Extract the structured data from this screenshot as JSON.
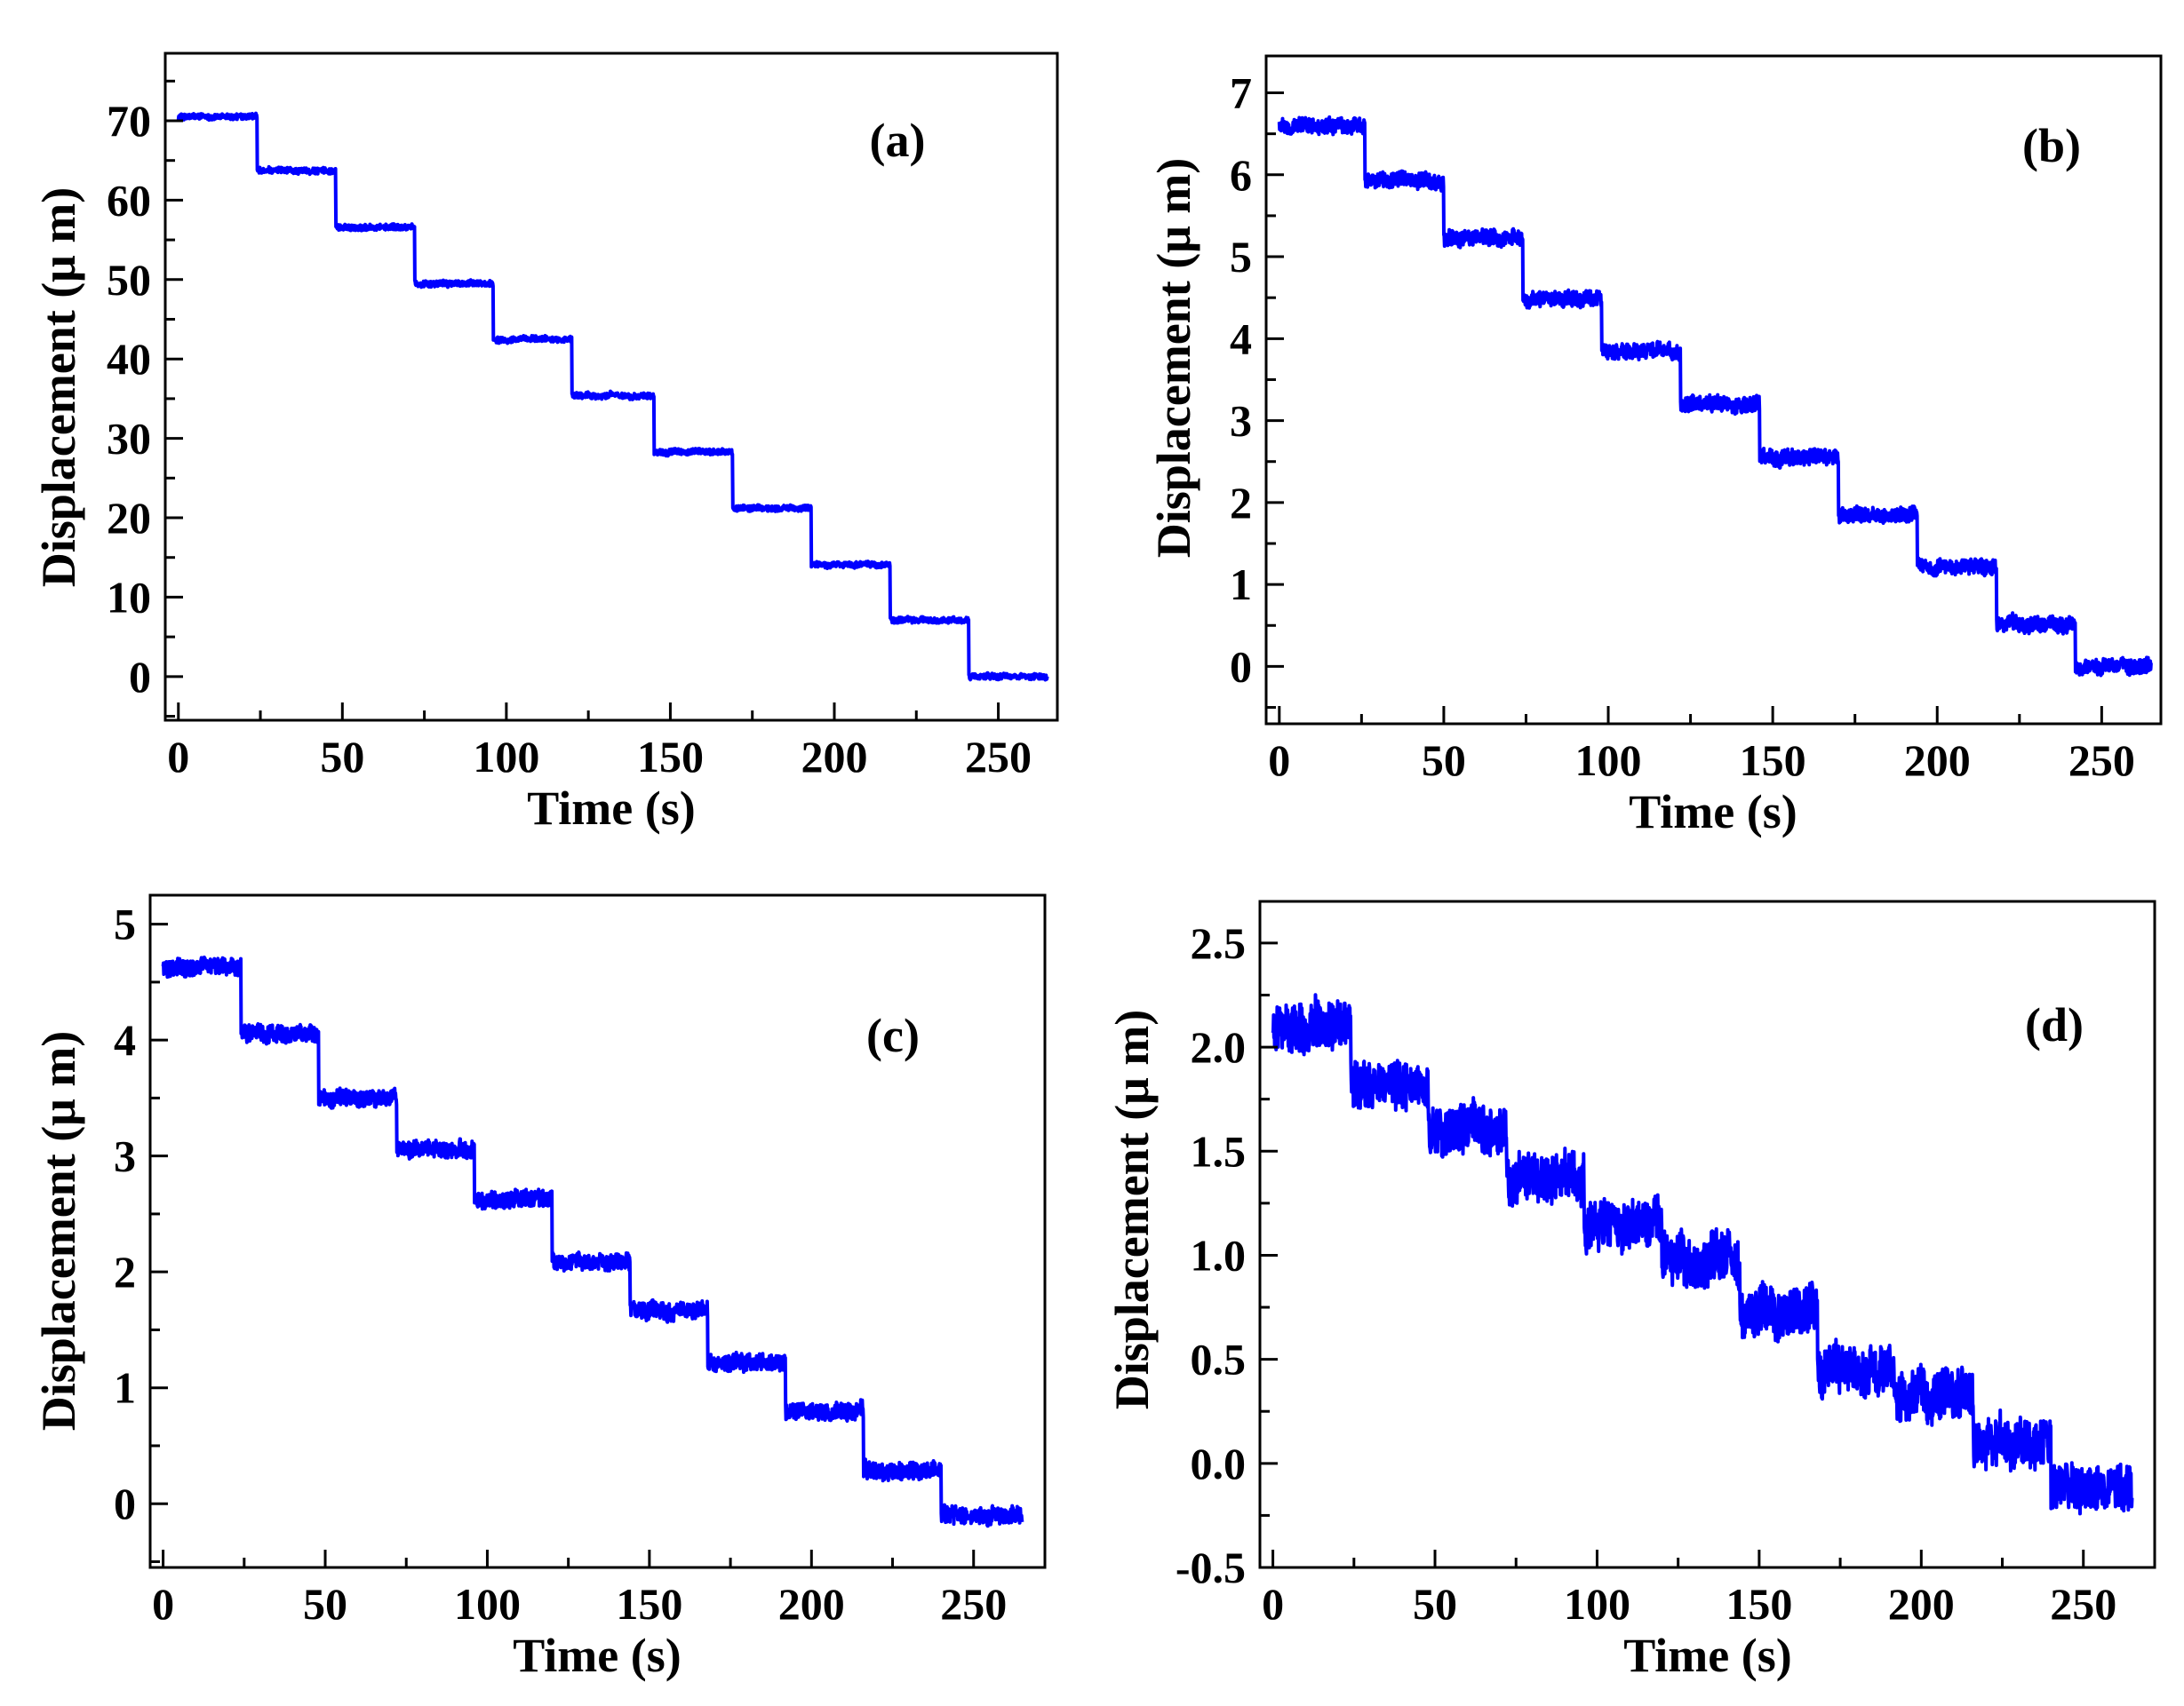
{
  "figure": {
    "line_color": "#0000FF"
  },
  "chart_data": [
    {
      "type": "line",
      "panel_label": "(a)",
      "xlabel": "Time (s)",
      "ylabel": "Displacement (μ m)",
      "xlim": [
        -4,
        268
      ],
      "ylim": [
        -5.5,
        78.5
      ],
      "xticks": [
        0,
        50,
        100,
        150,
        200,
        250
      ],
      "xtick_labels": [
        "0",
        "50",
        "100",
        "150",
        "200",
        "250"
      ],
      "yticks": [
        0,
        10,
        20,
        30,
        40,
        50,
        60,
        70
      ],
      "ytick_labels": [
        "0",
        "10",
        "20",
        "30",
        "40",
        "50",
        "60",
        "70"
      ],
      "noise": 0.35,
      "series": [
        {
          "name": "displacement",
          "x_range": [
            0,
            265
          ],
          "step_times": [
            24,
            48,
            72,
            96,
            120,
            145,
            169,
            193,
            217,
            241
          ],
          "levels": [
            70.5,
            63.7,
            56.6,
            49.5,
            42.5,
            35.4,
            28.3,
            21.2,
            14.1,
            7.1,
            0.0
          ]
        }
      ]
    },
    {
      "type": "line",
      "panel_label": "(b)",
      "xlabel": "Time (s)",
      "ylabel": "Displacement (μ m)",
      "xlim": [
        -4,
        268
      ],
      "ylim": [
        -0.7,
        7.45
      ],
      "xticks": [
        0,
        50,
        100,
        150,
        200,
        250
      ],
      "xtick_labels": [
        "0",
        "50",
        "100",
        "150",
        "200",
        "250"
      ],
      "yticks": [
        0,
        1,
        2,
        3,
        4,
        5,
        6,
        7
      ],
      "ytick_labels": [
        "0",
        "1",
        "2",
        "3",
        "4",
        "5",
        "6",
        "7"
      ],
      "noise": 0.09,
      "series": [
        {
          "name": "displacement",
          "x_range": [
            0,
            265
          ],
          "step_times": [
            26,
            50,
            74,
            98,
            122,
            146,
            170,
            194,
            218,
            242
          ],
          "levels": [
            6.6,
            5.92,
            5.22,
            4.48,
            3.85,
            3.2,
            2.55,
            1.85,
            1.22,
            0.52,
            0.0
          ]
        }
      ]
    },
    {
      "type": "line",
      "panel_label": "(c)",
      "xlabel": "Time (s)",
      "ylabel": "Displacement (μ m)",
      "xlim": [
        -4,
        272
      ],
      "ylim": [
        -0.55,
        5.25
      ],
      "xticks": [
        0,
        50,
        100,
        150,
        200,
        250
      ],
      "xtick_labels": [
        "0",
        "50",
        "100",
        "150",
        "200",
        "250"
      ],
      "yticks": [
        0,
        1,
        2,
        3,
        4,
        5
      ],
      "ytick_labels": [
        "0",
        "1",
        "2",
        "3",
        "4",
        "5"
      ],
      "noise": 0.07,
      "series": [
        {
          "name": "displacement",
          "x_range": [
            0,
            265
          ],
          "step_times": [
            24,
            48,
            72,
            96,
            120,
            144,
            168,
            192,
            216,
            240
          ],
          "levels": [
            4.63,
            4.05,
            3.5,
            3.05,
            2.62,
            2.08,
            1.67,
            1.22,
            0.8,
            0.28,
            -0.1
          ]
        }
      ]
    },
    {
      "type": "line",
      "panel_label": "(d)",
      "xlabel": "Time (s)",
      "ylabel": "Displacement (μ m)",
      "xlim": [
        -4,
        272
      ],
      "ylim": [
        -0.5,
        2.7
      ],
      "xticks": [
        0,
        50,
        100,
        150,
        200,
        250
      ],
      "xtick_labels": [
        "0",
        "50",
        "100",
        "150",
        "200",
        "250"
      ],
      "yticks": [
        -0.5,
        0.0,
        0.5,
        1.0,
        1.5,
        2.0,
        2.5
      ],
      "ytick_labels": [
        "-0.5",
        "0.0",
        "0.5",
        "1.0",
        "1.5",
        "2.0",
        "2.5"
      ],
      "noise": 0.11,
      "series": [
        {
          "name": "displacement",
          "x_range": [
            0,
            265
          ],
          "step_times": [
            24,
            48,
            72,
            96,
            120,
            144,
            168,
            192,
            216,
            240
          ],
          "levels": [
            2.1,
            1.83,
            1.6,
            1.37,
            1.15,
            0.97,
            0.72,
            0.45,
            0.33,
            0.1,
            -0.12
          ]
        }
      ]
    }
  ]
}
